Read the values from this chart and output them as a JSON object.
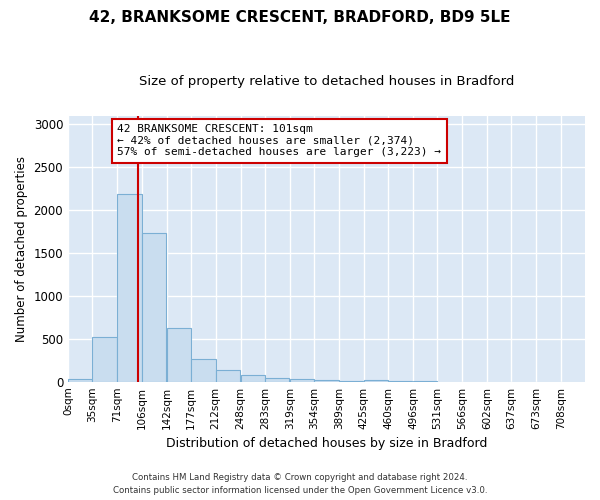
{
  "title1": "42, BRANKSOME CRESCENT, BRADFORD, BD9 5LE",
  "title2": "Size of property relative to detached houses in Bradford",
  "xlabel": "Distribution of detached houses by size in Bradford",
  "ylabel": "Number of detached properties",
  "bin_labels": [
    "0sqm",
    "35sqm",
    "71sqm",
    "106sqm",
    "142sqm",
    "177sqm",
    "212sqm",
    "248sqm",
    "283sqm",
    "319sqm",
    "354sqm",
    "389sqm",
    "425sqm",
    "460sqm",
    "496sqm",
    "531sqm",
    "566sqm",
    "602sqm",
    "637sqm",
    "673sqm",
    "708sqm"
  ],
  "bin_edges": [
    0,
    35,
    71,
    106,
    142,
    177,
    212,
    248,
    283,
    319,
    354,
    389,
    425,
    460,
    496,
    531,
    566,
    602,
    637,
    673,
    708
  ],
  "bar_heights": [
    30,
    520,
    2190,
    1730,
    630,
    270,
    140,
    80,
    45,
    35,
    20,
    10,
    15,
    5,
    5,
    0,
    0,
    0,
    0,
    0,
    0
  ],
  "bar_color": "#c9ddef",
  "bar_edge_color": "#7bafd4",
  "bar_edge_width": 0.8,
  "property_size": 101,
  "red_line_color": "#cc0000",
  "annotation_line1": "42 BRANKSOME CRESCENT: 101sqm",
  "annotation_line2": "← 42% of detached houses are smaller (2,374)",
  "annotation_line3": "57% of semi-detached houses are larger (3,223) →",
  "annotation_box_color": "#ffffff",
  "annotation_box_edge_color": "#cc0000",
  "ylim": [
    0,
    3100
  ],
  "yticks": [
    0,
    500,
    1000,
    1500,
    2000,
    2500,
    3000
  ],
  "plot_bg_color": "#dce8f5",
  "fig_bg_color": "#ffffff",
  "grid_color": "#ffffff",
  "footer1": "Contains HM Land Registry data © Crown copyright and database right 2024.",
  "footer2": "Contains public sector information licensed under the Open Government Licence v3.0.",
  "title1_fontsize": 11,
  "title2_fontsize": 9.5
}
